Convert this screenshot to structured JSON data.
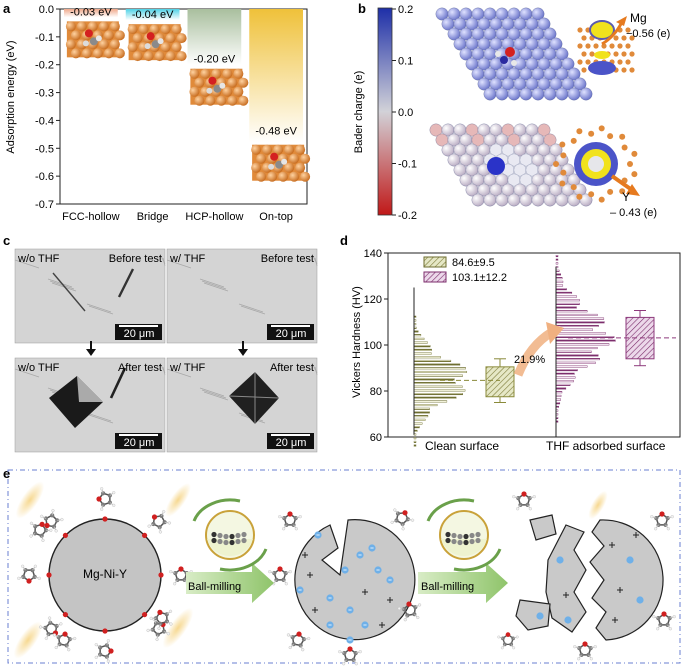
{
  "panels": {
    "a": {
      "label": "a",
      "ylabel": "Adsorption energy (eV)",
      "chart_data": {
        "type": "bar",
        "title": "",
        "xlabel": "",
        "ylabel": "Adsorption energy (eV)",
        "categories": [
          "FCC-hollow",
          "Bridge",
          "HCP-hollow",
          "On-top"
        ],
        "values": [
          -0.03,
          -0.04,
          -0.2,
          -0.48
        ],
        "value_labels": [
          "-0.03 eV",
          "-0.04 eV",
          "-0.20 eV",
          "-0.48 eV"
        ],
        "colors": [
          "#f0a88a",
          "#4fd2e6",
          "#a9bf9e",
          "#efc13a"
        ],
        "ylim": [
          -0.7,
          0.0
        ],
        "yticks": [
          0.0,
          -0.1,
          -0.2,
          -0.3,
          -0.4,
          -0.5,
          -0.6,
          -0.7
        ],
        "ytick_labels": [
          "0.0",
          "-0.1",
          "-0.2",
          "-0.3",
          "-0.4",
          "-0.5",
          "-0.6",
          "-0.7"
        ]
      }
    },
    "b": {
      "label": "b",
      "colorbar_label": "Bader charge (e)",
      "colorbar_ticks": [
        "0.2",
        "0.1",
        "0.0",
        "-0.1",
        "-0.2"
      ],
      "colorbar_colors": [
        "#1e2fa8",
        "#cfd0d8",
        "#c01818"
      ],
      "mg_label": "Mg",
      "mg_value": "−0.56 (e)",
      "y_label": "Y",
      "y_value": "– 0.43 (e)"
    },
    "c": {
      "label": "c",
      "images": [
        {
          "left": "w/o THF",
          "right": "Before test",
          "scale": "20 μm"
        },
        {
          "left": "w/ THF",
          "right": "Before test",
          "scale": "20 μm"
        },
        {
          "left": "w/o THF",
          "right": "After test",
          "scale": "20 μm"
        },
        {
          "left": "w/ THF",
          "right": "After test",
          "scale": "20 μm"
        }
      ]
    },
    "d": {
      "label": "d",
      "ylabel": "Vickers Hardness (HV)",
      "legend": [
        "84.6±9.5",
        "103.1±12.2"
      ],
      "increase_label": "21.9%",
      "chart_data": {
        "type": "box",
        "title": "",
        "ylabel": "Vickers Hardness (HV)",
        "categories": [
          "Clean surface",
          "THF adsorbed surface"
        ],
        "ylim": [
          60,
          140
        ],
        "yticks": [
          60,
          80,
          100,
          120,
          140
        ],
        "series": [
          {
            "name": "Clean surface",
            "mean": 84.6,
            "sd": 9.5,
            "q1": 77.5,
            "q3": 90.5,
            "min": 75,
            "max": 94,
            "color": "#8a8a3a"
          },
          {
            "name": "THF adsorbed surface",
            "mean": 103.1,
            "sd": 12.2,
            "q1": 94,
            "q3": 112,
            "min": 91,
            "max": 115,
            "color": "#8e3a7c"
          }
        ]
      }
    },
    "e": {
      "label": "e",
      "particle_label": "Mg-Ni-Y",
      "step1": "Ball-milling",
      "step2": "Ball-milling"
    }
  }
}
